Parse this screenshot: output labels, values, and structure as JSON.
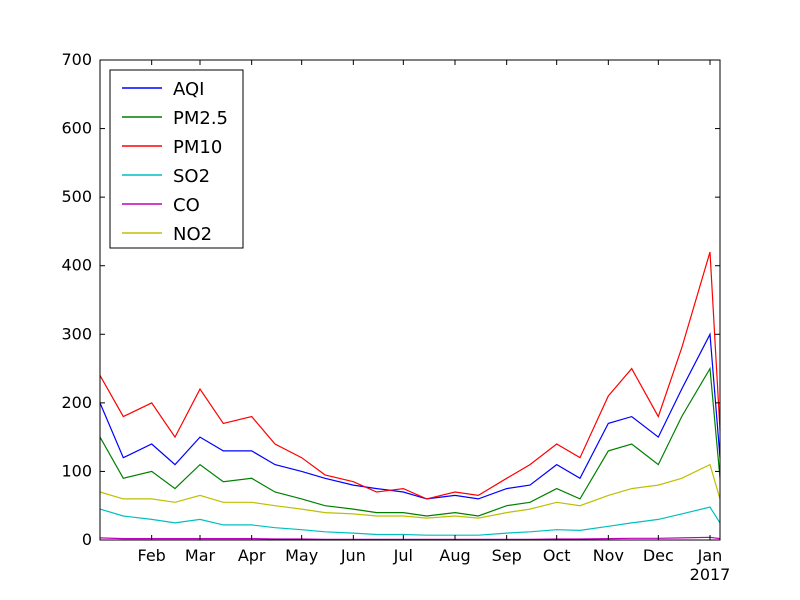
{
  "chart_data": {
    "type": "line",
    "title": "",
    "xlabel": "",
    "ylabel": "",
    "ylim": [
      0,
      700
    ],
    "y_ticks": [
      0,
      100,
      200,
      300,
      400,
      500,
      600,
      700
    ],
    "x_ticks": [
      "Feb",
      "Mar",
      "Apr",
      "May",
      "Jun",
      "Jul",
      "Aug",
      "Sep",
      "Oct",
      "Nov",
      "Dec",
      "Jan"
    ],
    "x_tick_dates": [
      "2016-02-01",
      "2016-03-01",
      "2016-04-01",
      "2016-05-01",
      "2016-06-01",
      "2016-07-01",
      "2016-08-01",
      "2016-09-01",
      "2016-10-01",
      "2016-11-01",
      "2016-12-01",
      "2017-01-01"
    ],
    "x_offset_label": "2017",
    "xlim": [
      "2016-01-01",
      "2017-01-07"
    ],
    "grid": false,
    "legend_position": "top-left",
    "x": [
      "2016-01-01",
      "2016-01-15",
      "2016-02-01",
      "2016-02-15",
      "2016-03-01",
      "2016-03-15",
      "2016-04-01",
      "2016-04-15",
      "2016-05-01",
      "2016-05-15",
      "2016-06-01",
      "2016-06-15",
      "2016-07-01",
      "2016-07-15",
      "2016-08-01",
      "2016-08-15",
      "2016-09-01",
      "2016-09-15",
      "2016-10-01",
      "2016-10-15",
      "2016-11-01",
      "2016-11-15",
      "2016-12-01",
      "2016-12-15",
      "2017-01-01",
      "2017-01-07"
    ],
    "series": [
      {
        "name": "AQI",
        "color": "#0000ff",
        "values": [
          200,
          120,
          140,
          110,
          150,
          130,
          130,
          110,
          100,
          90,
          80,
          75,
          70,
          60,
          65,
          60,
          75,
          80,
          110,
          90,
          170,
          180,
          150,
          220,
          300,
          120
        ]
      },
      {
        "name": "PM2.5",
        "color": "#008000",
        "values": [
          150,
          90,
          100,
          75,
          110,
          85,
          90,
          70,
          60,
          50,
          45,
          40,
          40,
          35,
          40,
          35,
          50,
          55,
          75,
          60,
          130,
          140,
          110,
          180,
          250,
          90
        ]
      },
      {
        "name": "PM10",
        "color": "#ff0000",
        "values": [
          240,
          180,
          200,
          150,
          220,
          170,
          180,
          140,
          120,
          95,
          85,
          70,
          75,
          60,
          70,
          65,
          90,
          110,
          140,
          120,
          210,
          250,
          180,
          280,
          420,
          160
        ]
      },
      {
        "name": "SO2",
        "color": "#00bfbf",
        "values": [
          45,
          35,
          30,
          25,
          30,
          22,
          22,
          18,
          15,
          12,
          10,
          8,
          8,
          7,
          7,
          7,
          10,
          12,
          15,
          14,
          20,
          25,
          30,
          38,
          48,
          25
        ]
      },
      {
        "name": "CO",
        "color": "#bf00bf",
        "values": [
          3,
          2,
          2,
          2,
          2,
          2,
          2,
          1.5,
          1.5,
          1,
          1,
          1,
          1,
          1,
          1,
          1,
          1,
          1,
          1.5,
          1.5,
          2,
          2.5,
          2.5,
          3,
          4,
          2
        ]
      },
      {
        "name": "NO2",
        "color": "#bfbf00",
        "values": [
          70,
          60,
          60,
          55,
          65,
          55,
          55,
          50,
          45,
          40,
          38,
          35,
          35,
          32,
          35,
          32,
          40,
          45,
          55,
          50,
          65,
          75,
          80,
          90,
          110,
          60
        ]
      }
    ]
  }
}
